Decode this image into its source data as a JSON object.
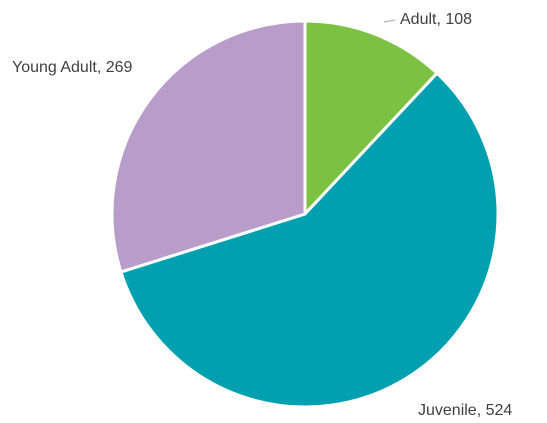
{
  "chart_data": {
    "type": "pie",
    "categories": [
      "Adult",
      "Juvenile",
      "Young Adult"
    ],
    "values": [
      108,
      524,
      269
    ],
    "value_labels": [
      "Adult, 108",
      "Juvenile, 524",
      "Young Adult, 269"
    ],
    "colors": [
      "#7dc142",
      "#00a0b0",
      "#b89cc9"
    ]
  }
}
